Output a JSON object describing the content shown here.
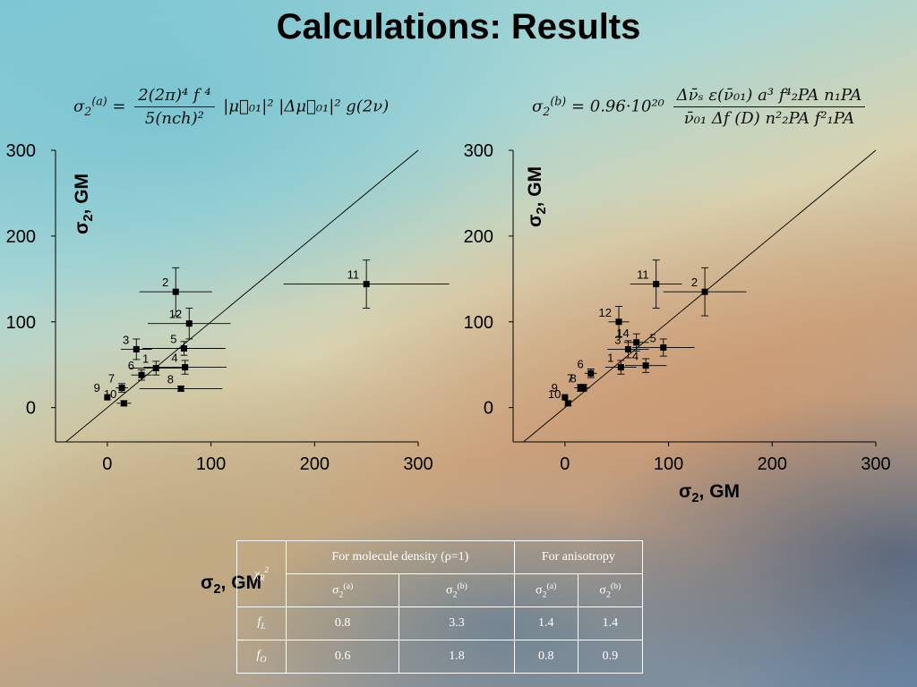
{
  "slide": {
    "title": "Calculations: Results"
  },
  "formulas": {
    "left": {
      "lhs": "σ",
      "lhs_sub": "2",
      "lhs_sup": "(a)",
      "equals": "=",
      "numerator": "2(2π)⁴ f ⁴",
      "denominator": "5(nch)²",
      "tail": "|μ⃗₀₁|² |Δμ⃗₀₁|² g(2ν)"
    },
    "right": {
      "lhs": "σ",
      "lhs_sub": "2",
      "lhs_sup": "(b)",
      "equals": "= 0.96·10²⁰",
      "numerator": "Δν̄ₛ ε(ν̄₀₁) a³ f⁴₂PA n₁PA",
      "denominator": "ν̄₀₁ Δf (D) n²₂PA f²₁PA"
    }
  },
  "axis_titles": {
    "sigma": "σ",
    "sub": "2",
    "unit": ", GM"
  },
  "chart_data": [
    {
      "type": "scatter",
      "ylim": [
        -40,
        300
      ],
      "xlim": [
        -50,
        300
      ],
      "xticks": [
        "0",
        "100",
        "200",
        "300"
      ],
      "yticks": [
        "0",
        "100",
        "200",
        "300"
      ],
      "diagonal": true,
      "points": [
        {
          "label": "1",
          "x": 47,
          "y": 46,
          "xerr": 25,
          "yerr": 8
        },
        {
          "label": "2",
          "x": 66,
          "y": 135,
          "xerr": 35,
          "yerr": 28
        },
        {
          "label": "3",
          "x": 28,
          "y": 68,
          "xerr": 15,
          "yerr": 12
        },
        {
          "label": "4",
          "x": 75,
          "y": 47,
          "xerr": 40,
          "yerr": 8
        },
        {
          "label": "5",
          "x": 74,
          "y": 69,
          "xerr": 40,
          "yerr": 8
        },
        {
          "label": "6",
          "x": 33,
          "y": 38,
          "xerr": 10,
          "yerr": 6
        },
        {
          "label": "7",
          "x": 14,
          "y": 23,
          "xerr": 6,
          "yerr": 5
        },
        {
          "label": "8",
          "x": 71,
          "y": 22,
          "xerr": 40,
          "yerr": 3
        },
        {
          "label": "9",
          "x": 0,
          "y": 12,
          "xerr": 0,
          "yerr": 0
        },
        {
          "label": "10",
          "x": 16,
          "y": 5,
          "xerr": 7,
          "yerr": 3
        },
        {
          "label": "11",
          "x": 250,
          "y": 144,
          "xerr": 80,
          "yerr": 28
        },
        {
          "label": "12",
          "x": 79,
          "y": 98,
          "xerr": 40,
          "yerr": 18
        }
      ]
    },
    {
      "type": "scatter",
      "ylim": [
        -40,
        300
      ],
      "xlim": [
        -50,
        300
      ],
      "xticks": [
        "0",
        "100",
        "200",
        "300"
      ],
      "yticks": [
        "0",
        "100",
        "200",
        "300"
      ],
      "diagonal": true,
      "points": [
        {
          "label": "1",
          "x": 54,
          "y": 47,
          "xerr": 15,
          "yerr": 8
        },
        {
          "label": "2",
          "x": 135,
          "y": 135,
          "xerr": 40,
          "yerr": 28
        },
        {
          "label": "3",
          "x": 61,
          "y": 68,
          "xerr": 20,
          "yerr": 10
        },
        {
          "label": "4",
          "x": 78,
          "y": 49,
          "xerr": 20,
          "yerr": 8
        },
        {
          "label": "5",
          "x": 95,
          "y": 70,
          "xerr": 30,
          "yerr": 10
        },
        {
          "label": "6",
          "x": 25,
          "y": 40,
          "xerr": 6,
          "yerr": 5
        },
        {
          "label": "7",
          "x": 15,
          "y": 23,
          "xerr": 6,
          "yerr": 4
        },
        {
          "label": "8",
          "x": 18,
          "y": 23,
          "xerr": 6,
          "yerr": 4
        },
        {
          "label": "9",
          "x": 0,
          "y": 12,
          "xerr": 0,
          "yerr": 0
        },
        {
          "label": "10",
          "x": 3,
          "y": 5,
          "xerr": 3,
          "yerr": 3
        },
        {
          "label": "11",
          "x": 88,
          "y": 144,
          "xerr": 25,
          "yerr": 28
        },
        {
          "label": "12",
          "x": 52,
          "y": 100,
          "xerr": 10,
          "yerr": 18
        },
        {
          "label": "14",
          "x": 69,
          "y": 76,
          "xerr": 12,
          "yerr": 10
        }
      ]
    }
  ],
  "fit_table": {
    "side_label_sigma": "σ",
    "side_label_sub": "2",
    "side_label_unit": ", GM",
    "corner": "χ",
    "corner_sub": "R",
    "corner_sup": "2",
    "group_density": "For molecule density (ρ=1)",
    "group_anisotropy": "For anisotropy",
    "sigma": "σ",
    "sub": "2",
    "sup_a": "(a)",
    "sup_b": "(b)",
    "rows": [
      {
        "label": "f",
        "label_sub": "L",
        "values": [
          "0.8",
          "3.3",
          "1.4",
          "1.4"
        ]
      },
      {
        "label": "f",
        "label_sub": "O",
        "values": [
          "0.6",
          "1.8",
          "0.8",
          "0.9"
        ]
      }
    ]
  }
}
